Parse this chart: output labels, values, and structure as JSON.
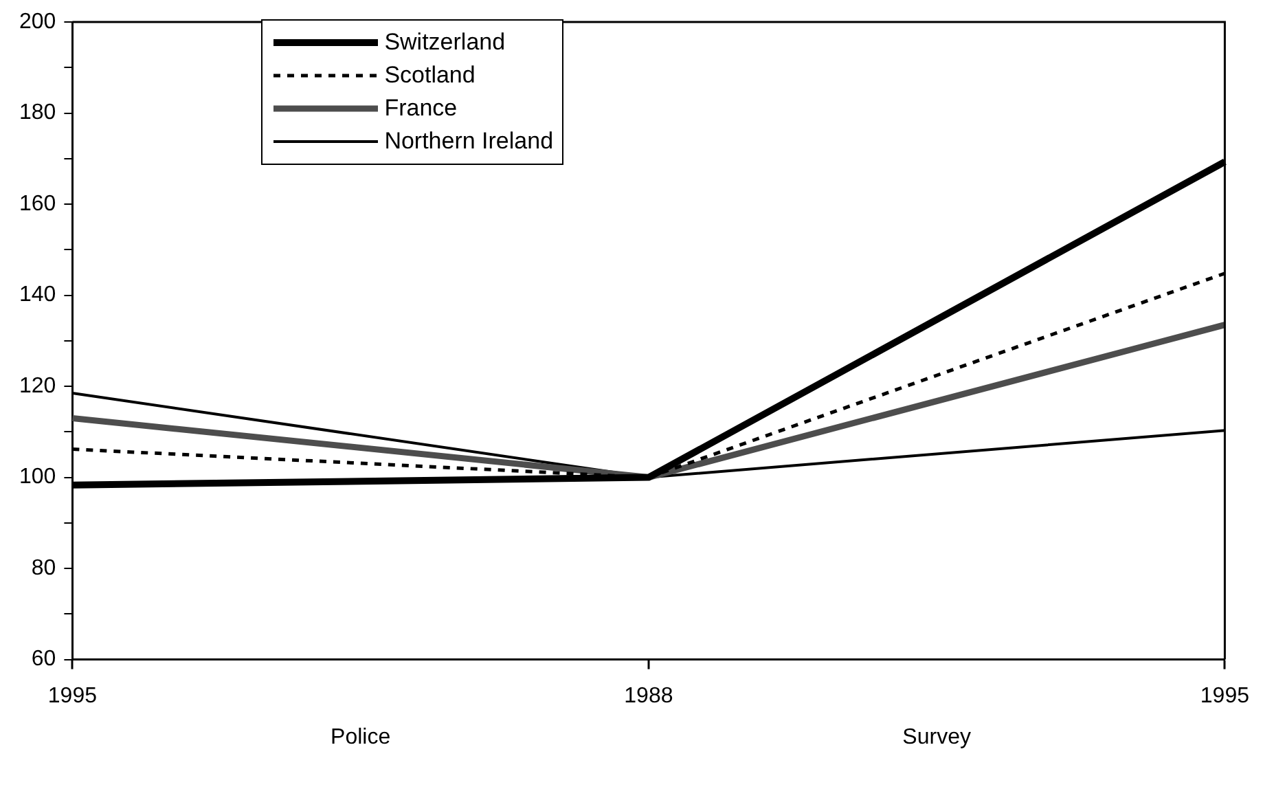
{
  "chart_data": {
    "type": "line",
    "categories": [
      "1995",
      "1988",
      "1995"
    ],
    "series": [
      {
        "name": "Switzerland",
        "color": "#000000",
        "values": [
          98.3,
          100,
          169.3
        ]
      },
      {
        "name": "Scotland",
        "color": "#000000",
        "values": [
          106.2,
          100,
          144.8
        ],
        "line_style": "dashed"
      },
      {
        "name": "France",
        "color": "#4d4d4d",
        "values": [
          113,
          100,
          133.5
        ]
      },
      {
        "name": "Northern Ireland",
        "color": "#000000",
        "values": [
          118.5,
          100,
          110.3
        ]
      }
    ],
    "ylim": [
      60,
      200
    ],
    "yticks": [
      60,
      {
        "value": 70,
        "label": null
      },
      80,
      {
        "value": 90,
        "label": null
      },
      100,
      {
        "value": 110,
        "label": null
      },
      120,
      {
        "value": 130,
        "label": null
      },
      140,
      {
        "value": 150,
        "label": null
      },
      160,
      {
        "value": 170,
        "label": null
      },
      180,
      {
        "value": 190,
        "label": null
      },
      200
    ],
    "grid": false,
    "legend": "top",
    "marker": "none",
    "annotations": [
      "Police",
      "Survey"
    ]
  }
}
